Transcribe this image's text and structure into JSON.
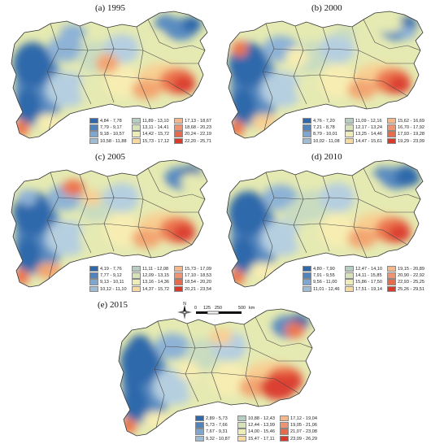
{
  "panels": [
    {
      "title": "(a) 1995",
      "colors": [
        "#2f69ab",
        "#5a8cc1",
        "#8db2d6",
        "#b5cfe0",
        "#c9dcc0",
        "#e5eab2",
        "#f7edb2",
        "#f8cf93",
        "#f3a571",
        "#ec7650",
        "#dc4130"
      ],
      "legend": [
        "4,84 - 7,78",
        "7,79 - 9,17",
        "9,18 - 10,57",
        "10,58 - 11,88",
        "11,89 - 13,10",
        "13,11 - 14,41",
        "14,42 - 15,72",
        "15,73 - 17,12",
        "17,13 - 18,67",
        "18,68 - 20,23",
        "20,24 - 22,19",
        "22,20 - 25,71"
      ]
    },
    {
      "title": "(b) 2000",
      "colors": [
        "#2f69ab",
        "#5a8cc1",
        "#8db2d6",
        "#b5cfe0",
        "#c9dcc0",
        "#e5eab2",
        "#f7edb2",
        "#f8cf93",
        "#f3a571",
        "#ec7650",
        "#dc4130"
      ],
      "legend": [
        "4,76 - 7,20",
        "7,21 - 8,78",
        "8,79 - 10,01",
        "10,02 - 11,08",
        "11,09 - 12,16",
        "12,17 - 13,24",
        "13,25 - 14,46",
        "14,47 - 15,61",
        "15,62 - 16,69",
        "16,70 - 17,92",
        "17,93 - 19,28",
        "19,29 - 23,09"
      ]
    },
    {
      "title": "(c) 2005",
      "colors": [
        "#2f69ab",
        "#5a8cc1",
        "#8db2d6",
        "#b5cfe0",
        "#c9dcc0",
        "#e5eab2",
        "#f7edb2",
        "#f8cf93",
        "#f3a571",
        "#ec7650",
        "#dc4130"
      ],
      "legend": [
        "4,19 - 7,76",
        "7,77 - 9,12",
        "9,13 - 10,11",
        "10,12 - 11,10",
        "11,11 - 12,08",
        "12,09 - 13,15",
        "13,16 - 14,36",
        "14,37 - 15,72",
        "15,73 - 17,09",
        "17,10 - 18,53",
        "18,54 - 20,20",
        "20,21 - 23,54"
      ]
    },
    {
      "title": "(d) 2010",
      "colors": [
        "#2f69ab",
        "#5a8cc1",
        "#8db2d6",
        "#b5cfe0",
        "#c9dcc0",
        "#e5eab2",
        "#f7edb2",
        "#f8cf93",
        "#f3a571",
        "#ec7650",
        "#dc4130"
      ],
      "legend": [
        "4,80 - 7,90",
        "7,91 - 9,55",
        "9,56 - 11,00",
        "11,01 - 12,46",
        "12,47 - 14,10",
        "14,11 - 15,85",
        "15,86 - 17,50",
        "17,51 - 19,14",
        "19,15 - 20,89",
        "20,90 - 22,92",
        "22,93 - 25,25",
        "25,26 - 29,51"
      ]
    },
    {
      "title": "(e) 2015",
      "colors": [
        "#2f69ab",
        "#5a8cc1",
        "#8db2d6",
        "#b5cfe0",
        "#c9dcc0",
        "#e5eab2",
        "#f7edb2",
        "#f8cf93",
        "#f3a571",
        "#ec7650",
        "#dc4130"
      ],
      "legend": [
        "2,89 - 5,73",
        "5,73 - 7,66",
        "7,67 - 9,31",
        "9,32 - 10,87",
        "10,88 - 12,43",
        "12,44 - 13,99",
        "14,00 - 15,46",
        "15,47 - 17,11",
        "17,12 - 19,04",
        "19,05 - 21,06",
        "21,07 - 23,08",
        "23,09 - 26,29"
      ]
    }
  ],
  "legend_swatch_colors": [
    "#2f69ab",
    "#4f84bd",
    "#7ea6cf",
    "#9fbcd3",
    "#b8cdc2",
    "#d6e2b8",
    "#eeedb8",
    "#f8d9a0",
    "#f6b88a",
    "#f09370",
    "#e76a4d",
    "#d93a2a"
  ],
  "scale": {
    "labels": [
      "0",
      "125",
      "250",
      "500"
    ],
    "unit": "km"
  },
  "compass": {
    "north": "N"
  }
}
